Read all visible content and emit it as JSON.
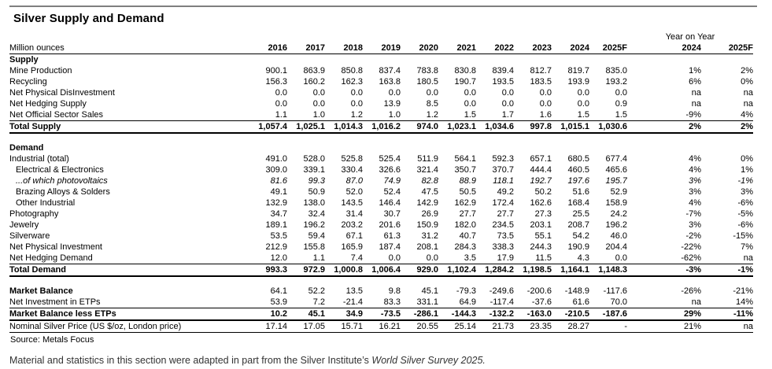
{
  "title": "Silver Supply and Demand",
  "source": "Source: Metals Focus",
  "footnote": {
    "text": "Material and statistics in this section were adapted in part from the Silver Institute’s ",
    "italic": "World Silver Survey 2025."
  },
  "table": {
    "unit_label": "Million ounces",
    "year_columns": [
      "2016",
      "2017",
      "2018",
      "2019",
      "2020",
      "2021",
      "2022",
      "2023",
      "2024",
      "2025F"
    ],
    "yoy_header": "Year on Year",
    "yoy_columns": [
      "2024",
      "2025F"
    ],
    "rows": [
      {
        "type": "section",
        "label": "Supply"
      },
      {
        "label": "Mine Production",
        "values": [
          "900.1",
          "863.9",
          "850.8",
          "837.4",
          "783.8",
          "830.8",
          "839.4",
          "812.7",
          "819.7",
          "835.0"
        ],
        "yoy": [
          "1%",
          "2%"
        ]
      },
      {
        "label": "Recycling",
        "values": [
          "156.3",
          "160.2",
          "162.3",
          "163.8",
          "180.5",
          "190.7",
          "193.5",
          "183.5",
          "193.9",
          "193.2"
        ],
        "yoy": [
          "6%",
          "0%"
        ]
      },
      {
        "label": "Net Physical DisInvestment",
        "values": [
          "0.0",
          "0.0",
          "0.0",
          "0.0",
          "0.0",
          "0.0",
          "0.0",
          "0.0",
          "0.0",
          "0.0"
        ],
        "yoy": [
          "na",
          "na"
        ]
      },
      {
        "label": "Net Hedging Supply",
        "values": [
          "0.0",
          "0.0",
          "0.0",
          "13.9",
          "8.5",
          "0.0",
          "0.0",
          "0.0",
          "0.0",
          "0.9"
        ],
        "yoy": [
          "na",
          "na"
        ]
      },
      {
        "label": "Net Official Sector Sales",
        "values": [
          "1.1",
          "1.0",
          "1.2",
          "1.0",
          "1.2",
          "1.5",
          "1.7",
          "1.6",
          "1.5",
          "1.5"
        ],
        "yoy": [
          "-9%",
          "4%"
        ]
      },
      {
        "type": "total",
        "label": "Total Supply",
        "values": [
          "1,057.4",
          "1,025.1",
          "1,014.3",
          "1,016.2",
          "974.0",
          "1,023.1",
          "1,034.6",
          "997.8",
          "1,015.1",
          "1,030.6"
        ],
        "yoy": [
          "2%",
          "2%"
        ]
      },
      {
        "type": "spacer"
      },
      {
        "type": "section",
        "label": "Demand"
      },
      {
        "label": "Industrial (total)",
        "values": [
          "491.0",
          "528.0",
          "525.8",
          "525.4",
          "511.9",
          "564.1",
          "592.3",
          "657.1",
          "680.5",
          "677.4"
        ],
        "yoy": [
          "4%",
          "0%"
        ]
      },
      {
        "label": "Electrical & Electronics",
        "indent": true,
        "values": [
          "309.0",
          "339.1",
          "330.4",
          "326.6",
          "321.4",
          "350.7",
          "370.7",
          "444.4",
          "460.5",
          "465.6"
        ],
        "yoy": [
          "4%",
          "1%"
        ]
      },
      {
        "type": "italic",
        "label": "...of which photovoltaics",
        "indent": true,
        "values": [
          "81.6",
          "99.3",
          "87.0",
          "74.9",
          "82.8",
          "88.9",
          "118.1",
          "192.7",
          "197.6",
          "195.7"
        ],
        "yoy": [
          "3%",
          "-1%"
        ]
      },
      {
        "label": "Brazing Alloys & Solders",
        "indent": true,
        "values": [
          "49.1",
          "50.9",
          "52.0",
          "52.4",
          "47.5",
          "50.5",
          "49.2",
          "50.2",
          "51.6",
          "52.9"
        ],
        "yoy": [
          "3%",
          "3%"
        ]
      },
      {
        "label": "Other Industrial",
        "indent": true,
        "values": [
          "132.9",
          "138.0",
          "143.5",
          "146.4",
          "142.9",
          "162.9",
          "172.4",
          "162.6",
          "168.4",
          "158.9"
        ],
        "yoy": [
          "4%",
          "-6%"
        ]
      },
      {
        "label": "Photography",
        "values": [
          "34.7",
          "32.4",
          "31.4",
          "30.7",
          "26.9",
          "27.7",
          "27.7",
          "27.3",
          "25.5",
          "24.2"
        ],
        "yoy": [
          "-7%",
          "-5%"
        ]
      },
      {
        "label": "Jewelry",
        "values": [
          "189.1",
          "196.2",
          "203.2",
          "201.6",
          "150.9",
          "182.0",
          "234.5",
          "203.1",
          "208.7",
          "196.2"
        ],
        "yoy": [
          "3%",
          "-6%"
        ]
      },
      {
        "label": "Silverware",
        "values": [
          "53.5",
          "59.4",
          "67.1",
          "61.3",
          "31.2",
          "40.7",
          "73.5",
          "55.1",
          "54.2",
          "46.0"
        ],
        "yoy": [
          "-2%",
          "-15%"
        ]
      },
      {
        "label": "Net Physical Investment",
        "values": [
          "212.9",
          "155.8",
          "165.9",
          "187.4",
          "208.1",
          "284.3",
          "338.3",
          "244.3",
          "190.9",
          "204.4"
        ],
        "yoy": [
          "-22%",
          "7%"
        ]
      },
      {
        "label": "Net Hedging Demand",
        "values": [
          "12.0",
          "1.1",
          "7.4",
          "0.0",
          "0.0",
          "3.5",
          "17.9",
          "11.5",
          "4.3",
          "0.0"
        ],
        "yoy": [
          "-62%",
          "na"
        ]
      },
      {
        "type": "total",
        "label": "Total Demand",
        "values": [
          "993.3",
          "972.9",
          "1,000.8",
          "1,006.4",
          "929.0",
          "1,102.4",
          "1,284.2",
          "1,198.5",
          "1,164.1",
          "1,148.3"
        ],
        "yoy": [
          "-3%",
          "-1%"
        ]
      },
      {
        "type": "spacer"
      },
      {
        "type": "boldlabel",
        "label": "Market Balance",
        "values": [
          "64.1",
          "52.2",
          "13.5",
          "9.8",
          "45.1",
          "-79.3",
          "-249.6",
          "-200.6",
          "-148.9",
          "-117.6"
        ],
        "yoy": [
          "-26%",
          "-21%"
        ]
      },
      {
        "label": "Net Investment in ETPs",
        "values": [
          "53.9",
          "7.2",
          "-21.4",
          "83.3",
          "331.1",
          "64.9",
          "-117.4",
          "-37.6",
          "61.6",
          "70.0"
        ],
        "yoy": [
          "na",
          "14%"
        ]
      },
      {
        "type": "total",
        "label": "Market Balance less ETPs",
        "values": [
          "10.2",
          "45.1",
          "34.9",
          "-73.5",
          "-286.1",
          "-144.3",
          "-132.2",
          "-163.0",
          "-210.5",
          "-187.6"
        ],
        "yoy": [
          "29%",
          "-11%"
        ]
      },
      {
        "type": "price",
        "label": "Nominal Silver Price (US $/oz, London price)",
        "values": [
          "17.14",
          "17.05",
          "15.71",
          "16.21",
          "20.55",
          "25.14",
          "21.73",
          "23.35",
          "28.27",
          "-"
        ],
        "yoy": [
          "21%",
          "na"
        ]
      }
    ]
  }
}
